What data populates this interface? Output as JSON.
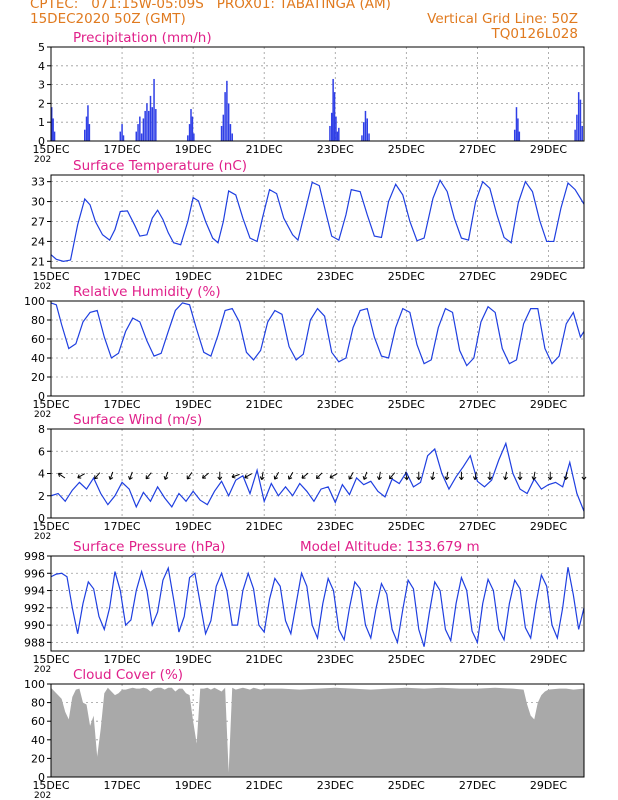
{
  "header": {
    "line1": "CPTEC:   071:15W-05:09S   PROX01: TABATINGA (AM)",
    "line2_left": "15DEC2020 50Z (GMT)",
    "line2_right": "Vertical Grid Line: 50Z",
    "line3_right": "TQ0126L028"
  },
  "colors": {
    "header": "#e07a1f",
    "title": "#e0208a",
    "line": "#1f3fe0",
    "bar": "#2f3fe6",
    "cloud": "#a9a9a9",
    "grid": "#9a9a9a"
  },
  "x_tick_labels": [
    "15DEC",
    "17DEC",
    "19DEC",
    "21DEC",
    "23DEC",
    "25DEC",
    "27DEC",
    "29DEC"
  ],
  "truncated_year": "202",
  "chart_data": [
    {
      "type": "bar",
      "title": "Precipitation (mm/h)",
      "ylim": [
        0,
        5
      ],
      "yticks": [
        0,
        1,
        2,
        3,
        4,
        5
      ],
      "x_unit": "day offset from 15DEC",
      "xlim": [
        0,
        15
      ],
      "grid": true,
      "bars": [
        [
          0.02,
          1.8
        ],
        [
          0.06,
          1.2
        ],
        [
          0.1,
          0.5
        ],
        [
          0.95,
          0.6
        ],
        [
          1.0,
          1.3
        ],
        [
          1.04,
          1.9
        ],
        [
          1.08,
          0.9
        ],
        [
          1.95,
          0.5
        ],
        [
          2.0,
          0.9
        ],
        [
          2.04,
          0.3
        ],
        [
          2.4,
          0.5
        ],
        [
          2.45,
          0.9
        ],
        [
          2.5,
          1.3
        ],
        [
          2.55,
          0.4
        ],
        [
          2.6,
          1.2
        ],
        [
          2.65,
          1.6
        ],
        [
          2.7,
          2.0
        ],
        [
          2.75,
          1.6
        ],
        [
          2.8,
          2.4
        ],
        [
          2.85,
          1.8
        ],
        [
          2.9,
          3.3
        ],
        [
          2.95,
          1.7
        ],
        [
          3.85,
          0.3
        ],
        [
          3.9,
          0.9
        ],
        [
          3.94,
          1.7
        ],
        [
          3.98,
          1.3
        ],
        [
          4.02,
          0.4
        ],
        [
          4.8,
          0.8
        ],
        [
          4.85,
          1.4
        ],
        [
          4.9,
          2.6
        ],
        [
          4.95,
          3.2
        ],
        [
          5.0,
          2.0
        ],
        [
          5.05,
          0.9
        ],
        [
          5.1,
          0.4
        ],
        [
          7.85,
          0.8
        ],
        [
          7.9,
          1.5
        ],
        [
          7.94,
          3.3
        ],
        [
          7.98,
          2.6
        ],
        [
          8.02,
          1.3
        ],
        [
          8.06,
          0.5
        ],
        [
          8.1,
          0.7
        ],
        [
          8.75,
          0.3
        ],
        [
          8.8,
          1.0
        ],
        [
          8.85,
          1.6
        ],
        [
          8.9,
          1.2
        ],
        [
          8.95,
          0.4
        ],
        [
          13.05,
          0.6
        ],
        [
          13.1,
          1.8
        ],
        [
          13.14,
          1.2
        ],
        [
          13.18,
          0.5
        ],
        [
          14.75,
          0.6
        ],
        [
          14.8,
          1.4
        ],
        [
          14.85,
          2.6
        ],
        [
          14.9,
          2.2
        ],
        [
          14.95,
          0.8
        ]
      ]
    },
    {
      "type": "line",
      "title": "Surface Temperature (nC)",
      "ylim": [
        20,
        34
      ],
      "yticks": [
        21,
        24,
        27,
        30,
        33
      ],
      "xlim": [
        0,
        15
      ],
      "grid": true,
      "x": [
        0,
        0.15,
        0.35,
        0.55,
        0.75,
        0.95,
        1.1,
        1.25,
        1.45,
        1.65,
        1.8,
        1.95,
        2.15,
        2.35,
        2.5,
        2.7,
        2.85,
        3.0,
        3.15,
        3.3,
        3.45,
        3.65,
        3.85,
        4.0,
        4.15,
        4.35,
        4.55,
        4.7,
        4.85,
        5.0,
        5.2,
        5.4,
        5.6,
        5.8,
        5.95,
        6.15,
        6.35,
        6.55,
        6.8,
        6.95,
        7.15,
        7.35,
        7.55,
        7.75,
        7.9,
        8.1,
        8.3,
        8.45,
        8.7,
        8.9,
        9.1,
        9.3,
        9.5,
        9.7,
        9.9,
        10.1,
        10.3,
        10.5,
        10.75,
        10.95,
        11.15,
        11.35,
        11.55,
        11.75,
        11.95,
        12.15,
        12.35,
        12.55,
        12.75,
        12.95,
        13.15,
        13.35,
        13.55,
        13.75,
        13.95,
        14.15,
        14.35,
        14.55,
        14.75,
        14.9,
        15.0
      ],
      "y": [
        22.0,
        21.3,
        21.0,
        21.2,
        26.5,
        30.4,
        29.5,
        27.0,
        25.0,
        24.2,
        25.8,
        28.5,
        28.6,
        26.5,
        24.8,
        25.0,
        27.5,
        28.7,
        27.3,
        25.3,
        23.8,
        23.5,
        27.0,
        30.6,
        30.1,
        27.0,
        24.5,
        23.8,
        27.0,
        31.6,
        31.0,
        27.5,
        24.5,
        24.0,
        27.5,
        31.8,
        31.2,
        27.5,
        25.0,
        24.2,
        28.5,
        32.9,
        32.4,
        28.0,
        24.8,
        24.2,
        28.0,
        31.8,
        31.5,
        28.0,
        24.8,
        24.6,
        30.0,
        32.6,
        31.0,
        27.0,
        24.1,
        24.5,
        30.5,
        33.2,
        31.5,
        27.5,
        24.5,
        24.2,
        30.0,
        33.0,
        32.0,
        28.0,
        24.6,
        23.8,
        29.8,
        33.0,
        31.5,
        27.2,
        24.0,
        24.0,
        29.0,
        32.8,
        31.8,
        30.5,
        29.6
      ]
    },
    {
      "type": "line",
      "title": "Relative Humidity (%)",
      "ylim": [
        0,
        100
      ],
      "yticks": [
        0,
        20,
        40,
        60,
        80,
        100
      ],
      "xlim": [
        0,
        15
      ],
      "grid": true,
      "x": [
        0,
        0.15,
        0.3,
        0.5,
        0.7,
        0.9,
        1.1,
        1.3,
        1.5,
        1.7,
        1.9,
        2.1,
        2.3,
        2.5,
        2.7,
        2.9,
        3.1,
        3.3,
        3.5,
        3.7,
        3.9,
        4.1,
        4.3,
        4.5,
        4.7,
        4.9,
        5.1,
        5.3,
        5.5,
        5.7,
        5.9,
        6.1,
        6.3,
        6.5,
        6.7,
        6.9,
        7.1,
        7.3,
        7.5,
        7.7,
        7.9,
        8.1,
        8.3,
        8.5,
        8.7,
        8.9,
        9.1,
        9.3,
        9.5,
        9.7,
        9.9,
        10.1,
        10.3,
        10.5,
        10.7,
        10.9,
        11.1,
        11.3,
        11.5,
        11.7,
        11.9,
        12.1,
        12.3,
        12.5,
        12.7,
        12.9,
        13.1,
        13.3,
        13.5,
        13.7,
        13.9,
        14.1,
        14.3,
        14.5,
        14.7,
        14.9,
        15.0
      ],
      "y": [
        98,
        96,
        75,
        50,
        55,
        78,
        88,
        90,
        62,
        40,
        45,
        68,
        82,
        78,
        58,
        42,
        45,
        68,
        90,
        98,
        96,
        70,
        46,
        42,
        64,
        90,
        92,
        78,
        46,
        38,
        48,
        78,
        90,
        86,
        52,
        38,
        44,
        80,
        92,
        84,
        46,
        36,
        40,
        72,
        90,
        92,
        62,
        42,
        40,
        72,
        92,
        88,
        54,
        34,
        38,
        72,
        92,
        88,
        48,
        32,
        40,
        78,
        94,
        88,
        50,
        34,
        38,
        76,
        92,
        92,
        50,
        34,
        42,
        76,
        88,
        62,
        68
      ]
    },
    {
      "type": "line",
      "title": "Surface Wind (m/s)",
      "ylim": [
        0,
        8
      ],
      "yticks": [
        0,
        2,
        4,
        6,
        8
      ],
      "xlim": [
        0,
        15
      ],
      "grid": true,
      "x": [
        0,
        0.2,
        0.4,
        0.6,
        0.8,
        1.0,
        1.2,
        1.4,
        1.6,
        1.8,
        2.0,
        2.2,
        2.4,
        2.6,
        2.8,
        3.0,
        3.2,
        3.4,
        3.6,
        3.8,
        4.0,
        4.2,
        4.4,
        4.6,
        4.8,
        5.0,
        5.2,
        5.4,
        5.6,
        5.8,
        6.0,
        6.2,
        6.4,
        6.6,
        6.8,
        7.0,
        7.2,
        7.4,
        7.6,
        7.8,
        8.0,
        8.2,
        8.4,
        8.6,
        8.8,
        9.0,
        9.2,
        9.4,
        9.6,
        9.8,
        10.0,
        10.2,
        10.4,
        10.6,
        10.8,
        11.0,
        11.2,
        11.4,
        11.6,
        11.8,
        12.0,
        12.2,
        12.4,
        12.6,
        12.8,
        13.0,
        13.2,
        13.4,
        13.6,
        13.8,
        14.0,
        14.2,
        14.4,
        14.6,
        14.8,
        15.0
      ],
      "y": [
        2.0,
        2.2,
        1.5,
        2.5,
        3.2,
        2.6,
        3.6,
        2.2,
        1.2,
        2.0,
        3.2,
        2.6,
        1.0,
        2.3,
        1.5,
        2.8,
        1.8,
        1.0,
        2.2,
        1.5,
        2.4,
        1.6,
        1.2,
        2.4,
        3.3,
        2.0,
        3.4,
        3.8,
        2.2,
        4.3,
        1.5,
        3.1,
        2.0,
        2.8,
        2.0,
        3.1,
        2.4,
        1.5,
        2.6,
        2.8,
        1.4,
        3.0,
        2.1,
        3.6,
        3.0,
        3.3,
        2.4,
        1.9,
        3.5,
        3.1,
        4.1,
        2.8,
        3.2,
        5.6,
        6.2,
        4.0,
        2.6,
        3.7,
        4.6,
        5.6,
        3.3,
        2.8,
        3.4,
        5.2,
        6.7,
        4.0,
        2.6,
        2.2,
        3.5,
        2.6,
        3.0,
        3.2,
        2.8,
        5.0,
        2.2,
        0.6
      ],
      "arrow_y": 3.8,
      "arrows_x": [
        0.3,
        0.85,
        1.3,
        1.7,
        2.25,
        2.75,
        3.25,
        3.9,
        4.35,
        4.75,
        5.2,
        5.55,
        5.95,
        6.35,
        6.75,
        7.15,
        7.55,
        7.95,
        8.45,
        8.85,
        9.25,
        9.6,
        10.0,
        10.35,
        10.75,
        11.15,
        11.55,
        11.95,
        12.35,
        12.8,
        13.2,
        13.6,
        14.05,
        14.5,
        15.0
      ],
      "arrows_dir_deg": [
        215,
        150,
        130,
        110,
        110,
        130,
        110,
        125,
        140,
        90,
        160,
        150,
        100,
        120,
        120,
        140,
        135,
        150,
        120,
        110,
        100,
        130,
        80,
        90,
        100,
        100,
        90,
        100,
        90,
        100,
        90,
        100,
        90,
        100,
        90
      ]
    },
    {
      "type": "line",
      "title": "Surface Pressure (hPa)",
      "annotation": "Model Altitude: 133.679  m",
      "ylim": [
        987,
        998
      ],
      "yticks": [
        988,
        990,
        992,
        994,
        996,
        998
      ],
      "xlim": [
        0,
        15
      ],
      "grid": true,
      "x": [
        0,
        0.15,
        0.3,
        0.45,
        0.6,
        0.75,
        0.9,
        1.05,
        1.2,
        1.35,
        1.5,
        1.65,
        1.8,
        1.95,
        2.1,
        2.25,
        2.4,
        2.55,
        2.7,
        2.85,
        3.0,
        3.15,
        3.3,
        3.45,
        3.6,
        3.75,
        3.9,
        4.05,
        4.2,
        4.35,
        4.5,
        4.65,
        4.8,
        4.95,
        5.1,
        5.25,
        5.4,
        5.55,
        5.7,
        5.85,
        6.0,
        6.15,
        6.3,
        6.45,
        6.6,
        6.75,
        6.9,
        7.05,
        7.2,
        7.35,
        7.5,
        7.65,
        7.8,
        7.95,
        8.1,
        8.25,
        8.4,
        8.55,
        8.7,
        8.85,
        9.0,
        9.15,
        9.3,
        9.45,
        9.6,
        9.75,
        9.9,
        10.05,
        10.2,
        10.35,
        10.5,
        10.65,
        10.8,
        10.95,
        11.1,
        11.25,
        11.4,
        11.55,
        11.7,
        11.85,
        12.0,
        12.15,
        12.3,
        12.45,
        12.6,
        12.75,
        12.9,
        13.05,
        13.2,
        13.35,
        13.5,
        13.65,
        13.8,
        13.95,
        14.1,
        14.25,
        14.4,
        14.55,
        14.7,
        14.85,
        15.0
      ],
      "y": [
        995.6,
        995.9,
        996.0,
        995.6,
        992.0,
        989.0,
        992.5,
        995.0,
        994.2,
        991.0,
        989.5,
        992.0,
        996.2,
        994.0,
        990.0,
        990.6,
        994.0,
        996.2,
        994.0,
        990.0,
        991.5,
        995.2,
        996.6,
        993.0,
        989.2,
        991.0,
        995.5,
        996.0,
        992.5,
        989.0,
        990.5,
        994.5,
        996.0,
        994.0,
        990.0,
        990.0,
        994.0,
        996.0,
        994.2,
        990.0,
        989.2,
        993.0,
        995.4,
        994.5,
        990.5,
        989.0,
        992.5,
        996.0,
        994.5,
        990.0,
        988.5,
        992.5,
        995.4,
        994.0,
        989.5,
        988.3,
        992.0,
        995.0,
        994.2,
        990.0,
        988.5,
        992.0,
        994.8,
        993.6,
        989.5,
        988.0,
        991.8,
        995.2,
        994.2,
        989.5,
        987.5,
        991.5,
        995.0,
        994.0,
        989.5,
        988.2,
        992.5,
        995.5,
        994.0,
        989.3,
        988.0,
        992.5,
        995.3,
        994.0,
        989.5,
        988.3,
        992.5,
        995.2,
        994.2,
        989.7,
        988.5,
        992.5,
        995.8,
        994.5,
        990.0,
        988.5,
        992.0,
        996.7,
        993.5,
        989.5,
        992.0
      ]
    },
    {
      "type": "area",
      "title": "Cloud Cover (%)",
      "ylim": [
        0,
        100
      ],
      "yticks": [
        0,
        20,
        40,
        60,
        80,
        100
      ],
      "xlim": [
        0,
        15
      ],
      "grid": true,
      "x": [
        0,
        0.1,
        0.2,
        0.3,
        0.4,
        0.5,
        0.6,
        0.7,
        0.8,
        0.9,
        1.0,
        1.1,
        1.2,
        1.3,
        1.4,
        1.5,
        1.6,
        1.7,
        1.8,
        1.9,
        2.0,
        2.1,
        2.2,
        2.3,
        2.4,
        2.5,
        2.6,
        2.7,
        2.8,
        2.9,
        3.0,
        3.1,
        3.2,
        3.3,
        3.4,
        3.5,
        3.6,
        3.7,
        3.8,
        3.9,
        4.0,
        4.1,
        4.2,
        4.3,
        4.4,
        4.5,
        4.6,
        4.7,
        4.8,
        4.9,
        5.0,
        5.1,
        5.2,
        5.3,
        5.4,
        5.5,
        5.6,
        5.7,
        5.8,
        5.9,
        6.0,
        6.5,
        7.0,
        7.5,
        8.0,
        8.5,
        9.0,
        9.5,
        10.0,
        10.5,
        11.0,
        11.5,
        12.0,
        12.5,
        13.0,
        13.3,
        13.4,
        13.5,
        13.6,
        13.7,
        13.8,
        13.9,
        14.0,
        14.3,
        14.5,
        14.7,
        15.0
      ],
      "y": [
        96,
        92,
        88,
        84,
        70,
        62,
        86,
        94,
        95,
        80,
        78,
        55,
        66,
        22,
        52,
        90,
        96,
        92,
        88,
        90,
        94,
        94,
        95,
        96,
        95,
        95,
        96,
        95,
        92,
        95,
        96,
        96,
        94,
        96,
        96,
        92,
        95,
        95,
        90,
        88,
        60,
        36,
        95,
        95,
        96,
        94,
        96,
        94,
        92,
        96,
        5,
        96,
        94,
        95,
        96,
        95,
        94,
        96,
        95,
        94,
        95,
        95,
        94,
        95,
        96,
        95,
        94,
        95,
        96,
        95,
        96,
        95,
        95,
        96,
        95,
        94,
        78,
        66,
        62,
        80,
        88,
        92,
        94,
        95,
        95,
        94,
        95
      ]
    }
  ]
}
